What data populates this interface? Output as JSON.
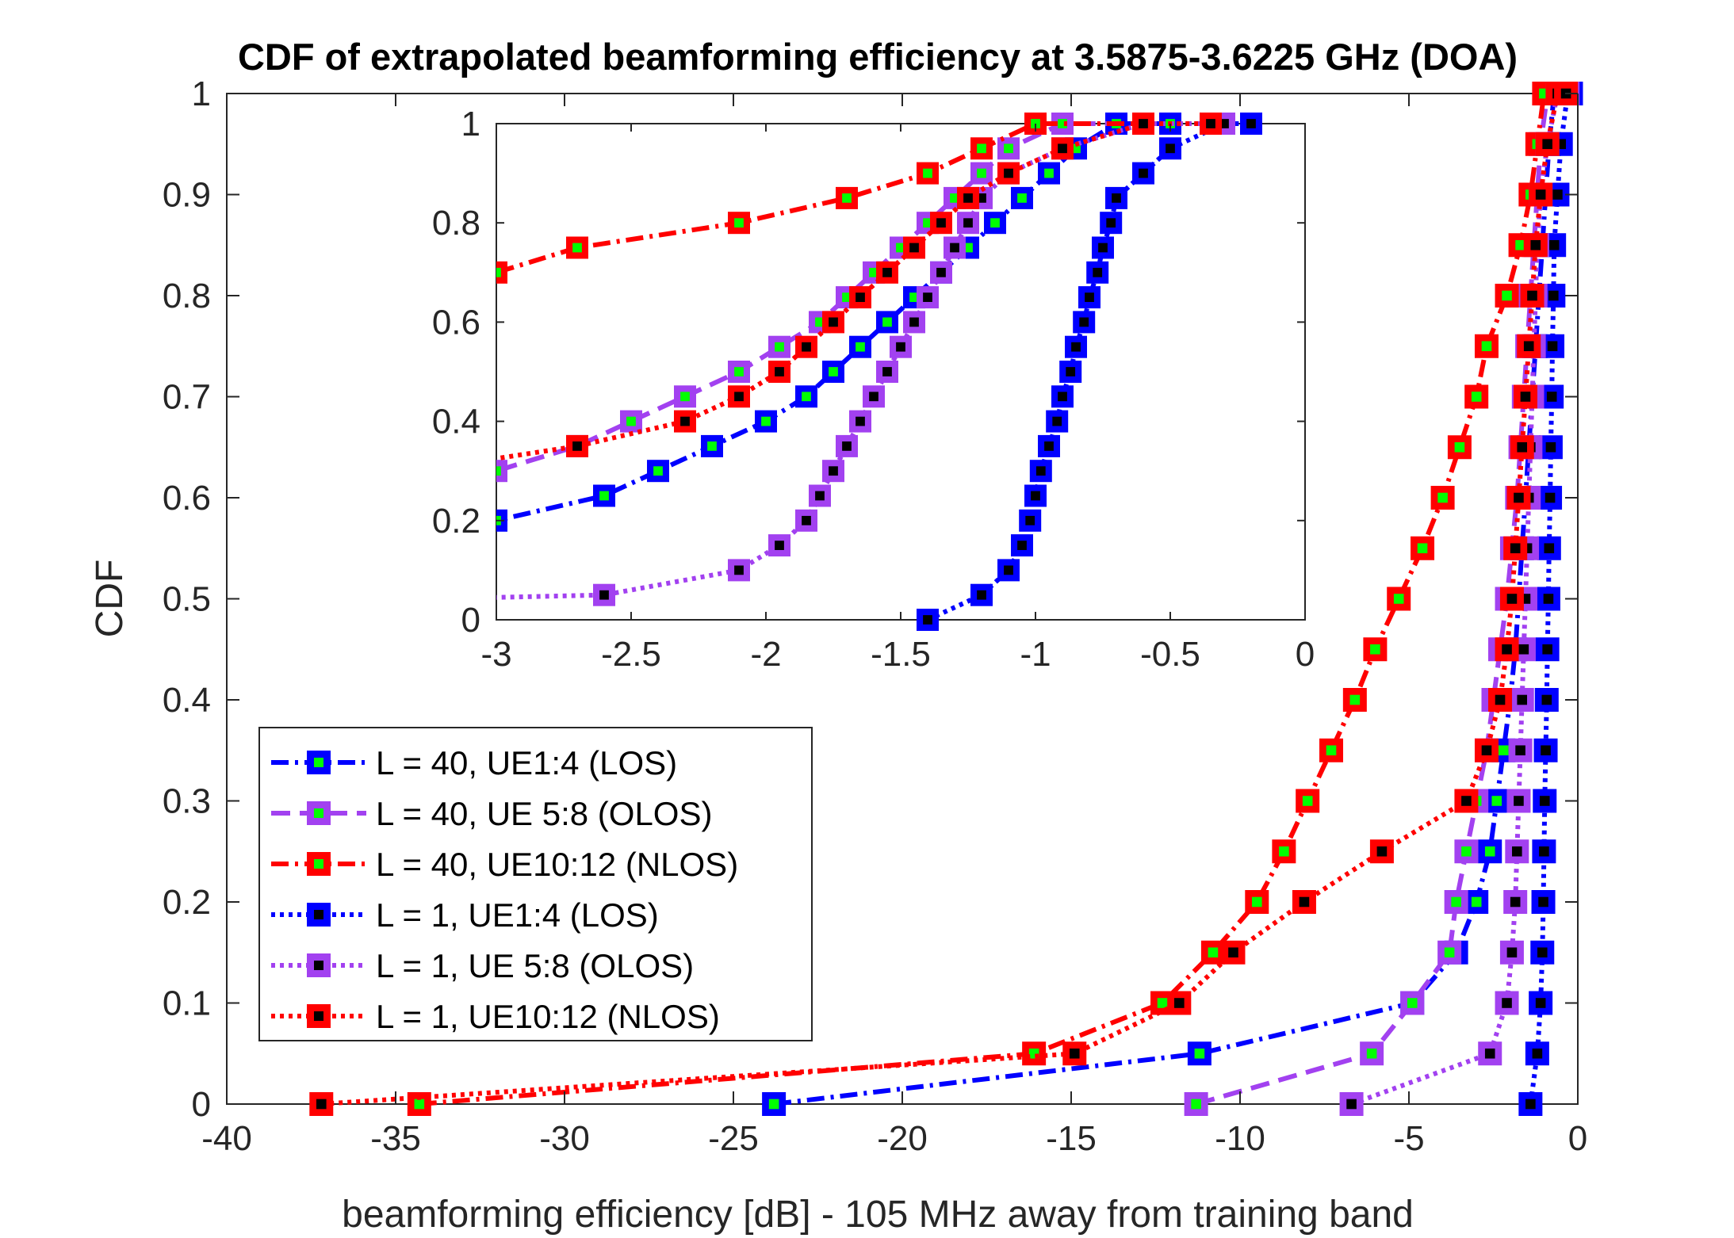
{
  "chart_data": {
    "type": "line",
    "title": "CDF of extrapolated beamforming efficiency at 3.5875-3.6225 GHz (DOA)",
    "xlabel": "beamforming efficiency [dB] - 105 MHz away from training band",
    "ylabel": "CDF",
    "xlim": [
      -40,
      0
    ],
    "ylim": [
      0,
      1
    ],
    "xticks": [
      "-40",
      "-35",
      "-30",
      "-25",
      "-20",
      "-15",
      "-10",
      "-5",
      "0"
    ],
    "yticks": [
      "0",
      "0.1",
      "0.2",
      "0.3",
      "0.4",
      "0.5",
      "0.6",
      "0.7",
      "0.8",
      "0.9",
      "1"
    ],
    "grid": false,
    "legend_position": "bottom-left",
    "series": [
      {
        "name": "L = 40, UE1:4 (LOS)",
        "color": "#0000ff",
        "marker_fill": "#00ff00",
        "line_style": "dashdot",
        "x": [
          -23.8,
          -11.2,
          -4.9,
          -3.6,
          -3.0,
          -2.6,
          -2.4,
          -2.2,
          -2.0,
          -1.85,
          -1.75,
          -1.65,
          -1.55,
          -1.45,
          -1.35,
          -1.25,
          -1.15,
          -1.05,
          -0.95,
          -0.85,
          -0.7,
          -0.5
        ],
        "y": [
          0.0,
          0.05,
          0.1,
          0.15,
          0.2,
          0.25,
          0.3,
          0.35,
          0.4,
          0.45,
          0.5,
          0.55,
          0.6,
          0.65,
          0.7,
          0.75,
          0.8,
          0.85,
          0.9,
          0.95,
          1.0,
          1.0
        ]
      },
      {
        "name": "L = 40, UE 5:8 (OLOS)",
        "color": "#a241f0",
        "marker_fill": "#00ff00",
        "line_style": "dashed",
        "x": [
          -11.3,
          -6.1,
          -4.9,
          -3.8,
          -3.6,
          -3.3,
          -3.0,
          -2.7,
          -2.5,
          -2.3,
          -2.1,
          -1.95,
          -1.8,
          -1.7,
          -1.6,
          -1.5,
          -1.4,
          -1.3,
          -1.2,
          -1.1,
          -0.9,
          -0.6
        ],
        "y": [
          0.0,
          0.05,
          0.1,
          0.15,
          0.2,
          0.25,
          0.3,
          0.35,
          0.4,
          0.45,
          0.5,
          0.55,
          0.6,
          0.65,
          0.7,
          0.75,
          0.8,
          0.85,
          0.9,
          0.95,
          1.0,
          1.0
        ]
      },
      {
        "name": "L = 40, UE10:12 (NLOS)",
        "color": "#ff0000",
        "marker_fill": "#00ff00",
        "line_style": "dashdot",
        "x": [
          -34.3,
          -16.1,
          -12.3,
          -10.8,
          -9.5,
          -8.7,
          -8.0,
          -7.3,
          -6.6,
          -6.0,
          -5.3,
          -4.6,
          -4.0,
          -3.5,
          -3.0,
          -2.7,
          -2.1,
          -1.7,
          -1.4,
          -1.2,
          -1.0,
          -0.6
        ],
        "y": [
          0.0,
          0.05,
          0.1,
          0.15,
          0.2,
          0.25,
          0.3,
          0.35,
          0.4,
          0.45,
          0.5,
          0.55,
          0.6,
          0.65,
          0.7,
          0.75,
          0.8,
          0.85,
          0.9,
          0.95,
          1.0,
          1.0
        ]
      },
      {
        "name": "L = 1, UE1:4 (LOS)",
        "color": "#0000ff",
        "marker_fill": "#000000",
        "line_style": "dotted",
        "x": [
          -1.4,
          -1.2,
          -1.1,
          -1.05,
          -1.02,
          -1.0,
          -0.98,
          -0.95,
          -0.92,
          -0.9,
          -0.87,
          -0.85,
          -0.82,
          -0.8,
          -0.77,
          -0.75,
          -0.72,
          -0.7,
          -0.6,
          -0.5,
          -0.3,
          -0.2
        ],
        "y": [
          0.0,
          0.05,
          0.1,
          0.15,
          0.2,
          0.25,
          0.3,
          0.35,
          0.4,
          0.45,
          0.5,
          0.55,
          0.6,
          0.65,
          0.7,
          0.75,
          0.8,
          0.85,
          0.9,
          0.95,
          1.0,
          1.0
        ]
      },
      {
        "name": "L = 1, UE 5:8 (OLOS)",
        "color": "#a241f0",
        "marker_fill": "#000000",
        "line_style": "dotted",
        "x": [
          -6.7,
          -2.6,
          -2.1,
          -1.95,
          -1.85,
          -1.8,
          -1.75,
          -1.7,
          -1.65,
          -1.6,
          -1.55,
          -1.5,
          -1.45,
          -1.4,
          -1.35,
          -1.3,
          -1.25,
          -1.2,
          -1.1,
          -0.9,
          -0.6,
          -0.3
        ],
        "y": [
          0.0,
          0.05,
          0.1,
          0.15,
          0.2,
          0.25,
          0.3,
          0.35,
          0.4,
          0.45,
          0.5,
          0.55,
          0.6,
          0.65,
          0.7,
          0.75,
          0.8,
          0.85,
          0.9,
          0.95,
          1.0,
          1.0
        ]
      },
      {
        "name": "L = 1, UE10:12 (NLOS)",
        "color": "#ff0000",
        "marker_fill": "#000000",
        "line_style": "dotted",
        "x": [
          -37.2,
          -14.9,
          -11.8,
          -10.2,
          -8.1,
          -5.8,
          -3.3,
          -2.7,
          -2.3,
          -2.1,
          -1.95,
          -1.85,
          -1.75,
          -1.65,
          -1.55,
          -1.45,
          -1.35,
          -1.25,
          -1.1,
          -0.9,
          -0.6,
          -0.35
        ],
        "y": [
          0.0,
          0.05,
          0.1,
          0.15,
          0.2,
          0.25,
          0.3,
          0.35,
          0.4,
          0.45,
          0.5,
          0.55,
          0.6,
          0.65,
          0.7,
          0.75,
          0.8,
          0.85,
          0.9,
          0.95,
          1.0,
          1.0
        ]
      }
    ],
    "inset": {
      "type": "line",
      "xlim": [
        -3,
        0
      ],
      "ylim": [
        0,
        1
      ],
      "xticks": [
        "-3",
        "-2.5",
        "-2",
        "-1.5",
        "-1",
        "-0.5",
        "0"
      ],
      "yticks": [
        "0",
        "0.2",
        "0.4",
        "0.6",
        "0.8",
        "1"
      ]
    }
  }
}
